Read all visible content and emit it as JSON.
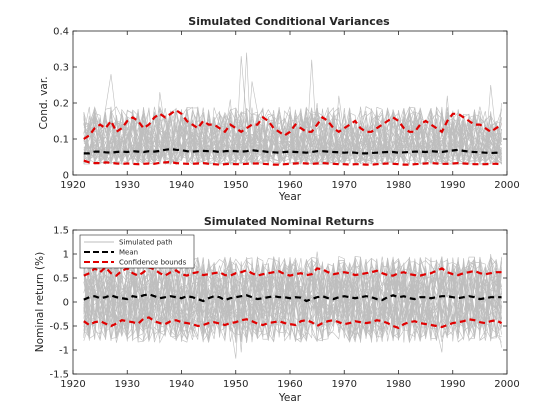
{
  "chart_data": [
    {
      "type": "line",
      "title": "Simulated Conditional Variances",
      "xlabel": "Year",
      "ylabel": "Cond. var.",
      "xlim": [
        1920,
        2000
      ],
      "ylim": [
        0,
        0.4
      ],
      "xticks": [
        1920,
        1930,
        1940,
        1950,
        1960,
        1970,
        1980,
        1990,
        2000
      ],
      "xtick_labels": [
        "1920",
        "1930",
        "1940",
        "1950",
        "1960",
        "1970",
        "1980",
        "1990",
        "2000"
      ],
      "yticks": [
        0,
        0.1,
        0.2,
        0.3,
        0.4
      ],
      "ytick_labels": [
        "0",
        "0.1",
        "0.2",
        "0.3",
        "0.4"
      ],
      "years": [
        1922,
        1999
      ],
      "series": [
        {
          "role": "simulated",
          "color": "#bebebe",
          "count": 40,
          "typical_range": [
            0.03,
            0.19
          ],
          "spikes": [
            {
              "x": 1949,
              "y": 0.21
            },
            {
              "x": 1951,
              "y": 0.33
            },
            {
              "x": 1952,
              "y": 0.34
            },
            {
              "x": 1953,
              "y": 0.26
            },
            {
              "x": 1964,
              "y": 0.32
            },
            {
              "x": 1965,
              "y": 0.2
            },
            {
              "x": 1969,
              "y": 0.22
            },
            {
              "x": 1927,
              "y": 0.28
            },
            {
              "x": 1936,
              "y": 0.23
            },
            {
              "x": 1997,
              "y": 0.25
            },
            {
              "x": 1999,
              "y": 0.2
            },
            {
              "x": 1989,
              "y": 0.22
            }
          ]
        },
        {
          "role": "mean",
          "color": "#000000",
          "values": [
            0.06,
            0.06,
            0.065,
            0.065,
            0.063,
            0.062,
            0.064,
            0.065,
            0.064,
            0.066,
            0.065,
            0.064,
            0.066,
            0.065,
            0.067,
            0.07,
            0.072,
            0.07,
            0.069,
            0.066,
            0.065,
            0.066,
            0.067,
            0.066,
            0.066,
            0.064,
            0.066,
            0.067,
            0.066,
            0.065,
            0.066,
            0.069,
            0.067,
            0.066,
            0.064,
            0.063,
            0.062,
            0.064,
            0.065,
            0.064,
            0.063,
            0.062,
            0.064,
            0.066,
            0.066,
            0.065,
            0.064,
            0.063,
            0.062,
            0.063,
            0.062,
            0.06,
            0.06,
            0.061,
            0.062,
            0.063,
            0.064,
            0.064,
            0.062,
            0.063,
            0.064,
            0.065,
            0.065,
            0.064,
            0.066,
            0.065,
            0.064,
            0.066,
            0.068,
            0.07,
            0.067,
            0.065,
            0.064,
            0.063,
            0.062,
            0.061,
            0.062,
            0.06
          ]
        },
        {
          "role": "upper bound",
          "color": "#e00000",
          "values": [
            0.1,
            0.11,
            0.13,
            0.14,
            0.13,
            0.15,
            0.12,
            0.13,
            0.15,
            0.16,
            0.15,
            0.13,
            0.14,
            0.16,
            0.17,
            0.16,
            0.17,
            0.18,
            0.17,
            0.15,
            0.14,
            0.13,
            0.15,
            0.14,
            0.14,
            0.13,
            0.12,
            0.14,
            0.13,
            0.12,
            0.13,
            0.14,
            0.14,
            0.16,
            0.15,
            0.13,
            0.12,
            0.11,
            0.12,
            0.14,
            0.13,
            0.12,
            0.12,
            0.14,
            0.16,
            0.15,
            0.13,
            0.12,
            0.13,
            0.14,
            0.15,
            0.13,
            0.12,
            0.12,
            0.13,
            0.14,
            0.15,
            0.16,
            0.15,
            0.13,
            0.12,
            0.12,
            0.14,
            0.15,
            0.14,
            0.13,
            0.12,
            0.15,
            0.17,
            0.17,
            0.16,
            0.15,
            0.14,
            0.14,
            0.13,
            0.12,
            0.13,
            0.14
          ]
        },
        {
          "role": "lower bound",
          "color": "#e00000",
          "values": [
            0.04,
            0.035,
            0.033,
            0.033,
            0.035,
            0.034,
            0.032,
            0.031,
            0.032,
            0.031,
            0.03,
            0.031,
            0.032,
            0.031,
            0.034,
            0.035,
            0.036,
            0.033,
            0.032,
            0.031,
            0.031,
            0.032,
            0.033,
            0.031,
            0.03,
            0.029,
            0.03,
            0.031,
            0.03,
            0.03,
            0.031,
            0.032,
            0.032,
            0.031,
            0.03,
            0.029,
            0.029,
            0.03,
            0.031,
            0.032,
            0.033,
            0.032,
            0.031,
            0.032,
            0.033,
            0.032,
            0.031,
            0.03,
            0.03,
            0.029,
            0.03,
            0.03,
            0.029,
            0.029,
            0.03,
            0.031,
            0.032,
            0.031,
            0.03,
            0.029,
            0.029,
            0.03,
            0.031,
            0.032,
            0.033,
            0.032,
            0.031,
            0.031,
            0.032,
            0.033,
            0.032,
            0.031,
            0.03,
            0.03,
            0.03,
            0.031,
            0.031,
            0.03
          ]
        }
      ]
    },
    {
      "type": "line",
      "title": "Simulated Nominal Returns",
      "xlabel": "Year",
      "ylabel": "Nominal return (%)",
      "xlim": [
        1920,
        2000
      ],
      "ylim": [
        -1.5,
        1.5
      ],
      "xticks": [
        1920,
        1930,
        1940,
        1950,
        1960,
        1970,
        1980,
        1990,
        2000
      ],
      "xtick_labels": [
        "1920",
        "1930",
        "1940",
        "1950",
        "1960",
        "1970",
        "1980",
        "1990",
        "2000"
      ],
      "yticks": [
        -1.5,
        -1,
        -0.5,
        0,
        0.5,
        1,
        1.5
      ],
      "ytick_labels": [
        "-1.5",
        "-1",
        "-0.5",
        "0",
        "0.5",
        "1",
        "1.5"
      ],
      "years": [
        1922,
        1999
      ],
      "legend": {
        "location": "top-left",
        "entries": [
          "Simulated path",
          "Mean",
          "Confidence bounds"
        ]
      },
      "series": [
        {
          "name": "Simulated path",
          "color": "#bebebe",
          "count": 40,
          "typical_range": [
            -0.85,
            0.95
          ],
          "extremes": [
            {
              "x": 1922,
              "y": 1.05
            },
            {
              "x": 1950,
              "y": -1.18
            },
            {
              "x": 1951,
              "y": -1.05
            },
            {
              "x": 1965,
              "y": 1.05
            },
            {
              "x": 1988,
              "y": -1.05
            },
            {
              "x": 1997,
              "y": 1.0
            },
            {
              "x": 1999,
              "y": -0.95
            }
          ]
        },
        {
          "name": "Mean",
          "color": "#000000",
          "values": [
            0.05,
            0.1,
            0.12,
            0.08,
            0.1,
            0.14,
            0.1,
            0.08,
            0.06,
            0.12,
            0.1,
            0.14,
            0.16,
            0.12,
            0.08,
            0.1,
            0.12,
            0.1,
            0.08,
            0.12,
            0.1,
            0.06,
            0.02,
            0.08,
            0.12,
            0.1,
            0.04,
            0.08,
            0.1,
            0.12,
            0.14,
            0.1,
            0.06,
            0.08,
            0.1,
            0.12,
            0.1,
            0.1,
            0.08,
            0.1,
            0.09,
            0.02,
            0.06,
            0.1,
            0.12,
            0.08,
            0.06,
            0.1,
            0.12,
            0.1,
            0.08,
            0.1,
            0.12,
            0.1,
            0.06,
            0.04,
            0.1,
            0.14,
            0.1,
            0.12,
            0.08,
            0.06,
            0.1,
            0.1,
            0.08,
            0.1,
            0.12,
            0.12,
            0.1,
            0.08,
            0.1,
            0.12,
            0.1,
            0.06,
            0.08,
            0.1,
            0.1,
            0.1
          ]
        },
        {
          "name": "Confidence bounds",
          "color": "#e00000",
          "upper": [
            0.55,
            0.6,
            0.7,
            0.62,
            0.72,
            0.6,
            0.55,
            0.65,
            0.7,
            0.6,
            0.55,
            0.62,
            0.72,
            0.68,
            0.6,
            0.55,
            0.62,
            0.66,
            0.58,
            0.55,
            0.6,
            0.62,
            0.56,
            0.58,
            0.6,
            0.62,
            0.56,
            0.55,
            0.6,
            0.62,
            0.66,
            0.6,
            0.55,
            0.58,
            0.6,
            0.62,
            0.64,
            0.58,
            0.55,
            0.58,
            0.6,
            0.56,
            0.58,
            0.7,
            0.68,
            0.62,
            0.58,
            0.6,
            0.62,
            0.6,
            0.56,
            0.58,
            0.6,
            0.62,
            0.65,
            0.6,
            0.56,
            0.55,
            0.6,
            0.62,
            0.58,
            0.56,
            0.55,
            0.58,
            0.6,
            0.65,
            0.7,
            0.62,
            0.58,
            0.56,
            0.6,
            0.62,
            0.65,
            0.6,
            0.58,
            0.6,
            0.62,
            0.62
          ],
          "lower": [
            -0.4,
            -0.48,
            -0.42,
            -0.4,
            -0.45,
            -0.5,
            -0.45,
            -0.38,
            -0.4,
            -0.42,
            -0.45,
            -0.35,
            -0.32,
            -0.4,
            -0.44,
            -0.46,
            -0.4,
            -0.38,
            -0.42,
            -0.44,
            -0.46,
            -0.5,
            -0.48,
            -0.44,
            -0.42,
            -0.45,
            -0.48,
            -0.44,
            -0.42,
            -0.38,
            -0.36,
            -0.4,
            -0.45,
            -0.48,
            -0.44,
            -0.42,
            -0.4,
            -0.44,
            -0.46,
            -0.48,
            -0.4,
            -0.38,
            -0.42,
            -0.5,
            -0.44,
            -0.4,
            -0.38,
            -0.42,
            -0.46,
            -0.44,
            -0.4,
            -0.42,
            -0.44,
            -0.42,
            -0.38,
            -0.4,
            -0.44,
            -0.5,
            -0.54,
            -0.46,
            -0.42,
            -0.4,
            -0.44,
            -0.46,
            -0.48,
            -0.5,
            -0.52,
            -0.48,
            -0.44,
            -0.42,
            -0.4,
            -0.36,
            -0.38,
            -0.42,
            -0.44,
            -0.4,
            -0.38,
            -0.44
          ]
        }
      ]
    }
  ]
}
